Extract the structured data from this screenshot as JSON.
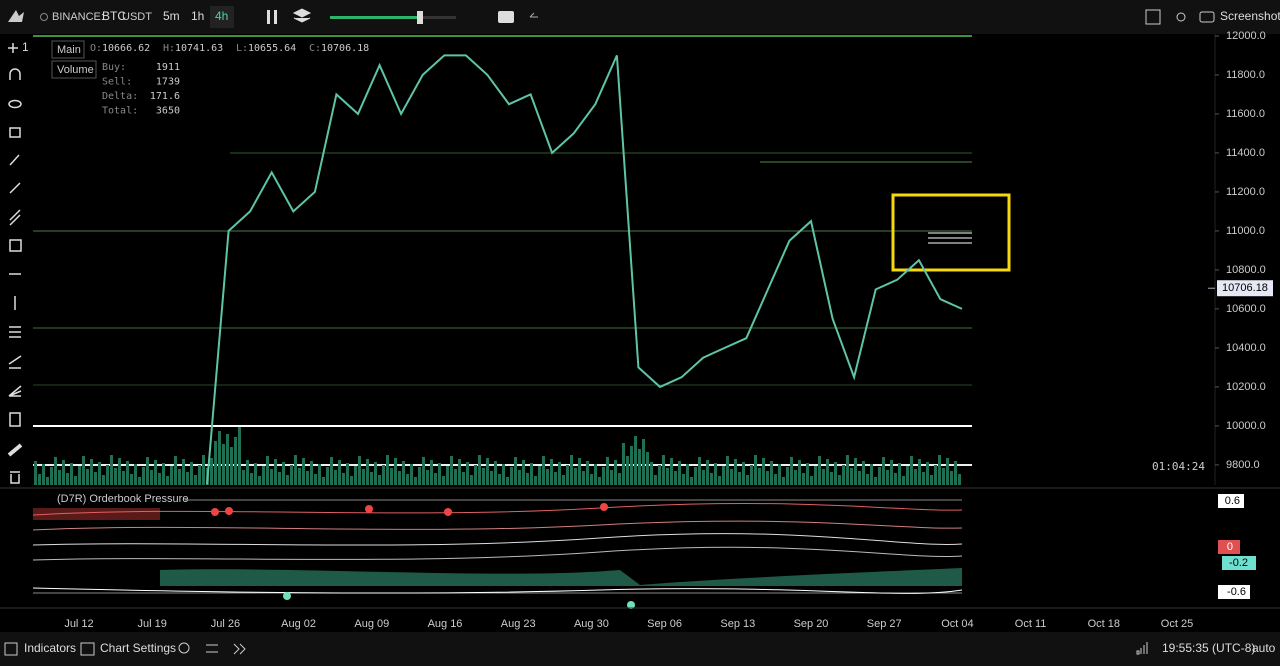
{
  "toolbar": {
    "exchange": "BINANCE:",
    "base": "BTC",
    "quote": "USDT",
    "intervals": [
      "5m",
      "1h",
      "4h"
    ],
    "screenshot": "Screenshot"
  },
  "drawing_count": "1",
  "legend": {
    "main": "Main",
    "volume": "Volume",
    "ohlc": [
      {
        "label": "O:",
        "value": 10666.62
      },
      {
        "label": "H:",
        "value": 10741.63
      },
      {
        "label": "L:",
        "value": 10655.64
      },
      {
        "label": "C:",
        "value": 10706.18
      }
    ],
    "stats": [
      {
        "label": "Buy:",
        "value": 1911
      },
      {
        "label": "Sell:",
        "value": 1739
      },
      {
        "label": "Delta:",
        "value": 171.6
      },
      {
        "label": "Total:",
        "value": 3650
      }
    ]
  },
  "chart_data": {
    "type": "line",
    "ylim": [
      9697,
      12010
    ],
    "yticks": [
      {
        "value": 9800,
        "label": "9800.0"
      },
      {
        "value": 10000,
        "label": "10000.0"
      },
      {
        "value": 10200,
        "label": "10200.0"
      },
      {
        "value": 10400,
        "label": "10400.0"
      },
      {
        "value": 10600,
        "label": "10600.0"
      },
      {
        "value": 10800,
        "label": "10800.0"
      },
      {
        "value": 11000,
        "label": "11000.0"
      },
      {
        "value": 11200,
        "label": "11200.0"
      },
      {
        "value": 11400,
        "label": "11400.0"
      },
      {
        "value": 11600,
        "label": "11600.0"
      },
      {
        "value": 11800,
        "label": "11800.0"
      },
      {
        "value": 12000,
        "label": "12000.0"
      }
    ],
    "series": [
      {
        "color": "#5ec4a8",
        "values": [
          9700,
          11000,
          11100,
          11300,
          11100,
          11200,
          11700,
          11600,
          11850,
          11600,
          11800,
          11900,
          11900,
          11800,
          11650,
          11700,
          11400,
          11500,
          11650,
          11900,
          10300,
          10200,
          10250,
          10350,
          10400,
          10450,
          10700,
          10950,
          11050,
          10550,
          10250,
          10700,
          10750,
          10850,
          10650,
          10600
        ]
      }
    ],
    "last_price": 10706.18,
    "countdown": "01:04:24",
    "x_labels": [
      "Jul 12",
      "Jul 19",
      "Jul 26",
      "Aug 02",
      "Aug 09",
      "Aug 16",
      "Aug 23",
      "Aug 30",
      "Sep 06",
      "Sep 13",
      "Sep 20",
      "Sep 27",
      "Oct 04",
      "Oct 11",
      "Oct 18",
      "Oct 25"
    ]
  },
  "indicator": {
    "title": "(D7R) Orderbook Pressure",
    "labels": [
      "0.6",
      "0",
      "-0.2",
      "-0.6"
    ]
  },
  "bottom_bar": {
    "indicators": "Indicators",
    "chart_settings": "Chart Settings",
    "time": "19:55:35 (UTC-8)",
    "scale": "auto"
  }
}
